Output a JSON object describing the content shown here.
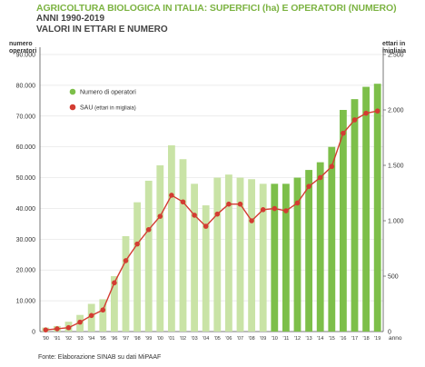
{
  "title": "AGRICOLTURA BIOLOGICA IN ITALIA: SUPERFICI (ha) E OPERATORI (NUMERO)",
  "subtitle_1": "ANNI 1990-2019",
  "subtitle_2": "VALORI IN ETTARI E NUMERO",
  "source": "Fonte: Elaborazione SINAB su dati MiPAAF",
  "colors": {
    "bar_light": "#c9e3a6",
    "bar_dark": "#7dbf4a",
    "line": "#d33c32",
    "title": "#7cb342"
  },
  "chart_data": {
    "type": "bar",
    "categories": [
      "'90",
      "'91",
      "'92",
      "'93",
      "'94",
      "'95",
      "'96",
      "'97",
      "'98",
      "'99",
      "'00",
      "'01",
      "'02",
      "'03",
      "'04",
      "'05",
      "'06",
      "'07",
      "'08",
      "'09",
      "'10",
      "'11",
      "'12",
      "'13",
      "'14",
      "'15",
      "'16",
      "'17",
      "'18",
      "'19"
    ],
    "x_axis_end_label": "anno",
    "left_axis": {
      "label_line1": "numero",
      "label_line2": "operatori",
      "ylim": [
        0,
        90000
      ],
      "ticks": [
        0,
        10000,
        20000,
        30000,
        40000,
        50000,
        60000,
        70000,
        80000,
        90000
      ],
      "tick_labels": [
        "0",
        "10.000",
        "20.000",
        "30.000",
        "40.000",
        "50.000",
        "60.000",
        "70.000",
        "80.000",
        "90.000"
      ]
    },
    "right_axis": {
      "label_line1": "ettari in",
      "label_line2": "migliaia",
      "ylim": [
        0,
        2500
      ],
      "ticks": [
        500,
        1000,
        1500,
        2000,
        2500
      ],
      "tick_labels": [
        "500",
        "1.000",
        "1.500",
        "2.000",
        "2.500"
      ]
    },
    "series": [
      {
        "name": "Numero di operatori",
        "type": "bar",
        "axis": "left",
        "highlight_from_index": 20,
        "values": [
          1300,
          1800,
          3200,
          5400,
          9000,
          10500,
          18000,
          31000,
          42000,
          49000,
          54000,
          60500,
          56000,
          48000,
          41000,
          50000,
          51000,
          50000,
          49500,
          48000,
          48000,
          48000,
          50000,
          52500,
          55000,
          60000,
          72000,
          75500,
          79500,
          80500
        ]
      },
      {
        "name": "SAU",
        "name_suffix": " (ettari in migliaia)",
        "type": "line",
        "axis": "right",
        "values": [
          15,
          25,
          35,
          85,
          145,
          195,
          440,
          640,
          790,
          920,
          1040,
          1230,
          1170,
          1050,
          950,
          1060,
          1150,
          1150,
          1000,
          1100,
          1110,
          1090,
          1160,
          1310,
          1390,
          1490,
          1790,
          1910,
          1970,
          1990
        ]
      }
    ]
  }
}
